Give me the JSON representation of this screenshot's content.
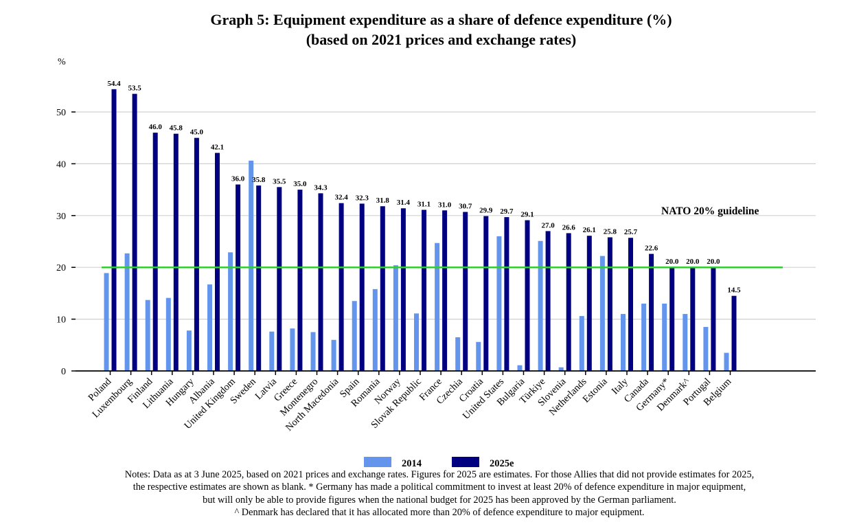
{
  "chart_data": {
    "type": "bar",
    "title": "Graph 5: Equipment expenditure as a share of defence expenditure (%)",
    "subtitle": "(based on 2021 prices and exchange rates)",
    "ylabel": "%",
    "xlabel": "",
    "ylim": [
      0,
      55
    ],
    "yticks": [
      0,
      10,
      20,
      30,
      40,
      50
    ],
    "grid": true,
    "legend_position": "bottom-center",
    "categories": [
      "Poland",
      "Luxembourg",
      "Finland",
      "Lithuania",
      "Hungary",
      "Albania",
      "United Kingdom",
      "Sweden",
      "Latvia",
      "Greece",
      "Montenegro",
      "North Macedonia",
      "Spain",
      "Romania",
      "Norway",
      "Slovak Republic",
      "France",
      "Czechia",
      "Croatia",
      "United States",
      "Bulgaria",
      "Türkiye",
      "Slovenia",
      "Netherlands",
      "Estonia",
      "Italy",
      "Canada",
      "Germany*",
      "Denmark^",
      "Portugal",
      "Belgium"
    ],
    "series": [
      {
        "name": "2014",
        "color": "#6495ED",
        "values": [
          18.9,
          22.7,
          13.7,
          14.1,
          7.8,
          16.7,
          22.9,
          40.6,
          7.6,
          8.2,
          7.5,
          6.0,
          13.5,
          15.8,
          20.4,
          11.1,
          24.7,
          6.5,
          5.6,
          26.0,
          1.1,
          25.1,
          0.7,
          10.6,
          22.2,
          11.0,
          13.0,
          13.0,
          11.0,
          8.5,
          3.5
        ]
      },
      {
        "name": "2025e",
        "color": "#000080",
        "values": [
          54.4,
          53.5,
          46.0,
          45.8,
          45.0,
          42.1,
          36.0,
          35.8,
          35.5,
          35.0,
          34.3,
          32.4,
          32.3,
          31.8,
          31.4,
          31.1,
          31.0,
          30.7,
          29.9,
          29.7,
          29.1,
          27.0,
          26.6,
          26.1,
          25.8,
          25.7,
          22.6,
          20.0,
          20.0,
          20.0,
          14.5
        ],
        "labels": [
          "54.4",
          "53.5",
          "46.0",
          "45.8",
          "45.0",
          "42.1",
          "36.0",
          "35.8",
          "35.5",
          "35.0",
          "34.3",
          "32.4",
          "32.3",
          "31.8",
          "31.4",
          "31.1",
          "31.0",
          "30.7",
          "29.9",
          "29.7",
          "29.1",
          "27.0",
          "26.6",
          "26.1",
          "25.8",
          "25.7",
          "22.6",
          "20.0",
          "20.0",
          "20.0",
          "14.5"
        ]
      }
    ],
    "reference_line": {
      "value": 20,
      "label": "NATO 20% guideline",
      "color": "#33CC33"
    }
  },
  "notes": [
    "Notes: Data as at 3 June 2025, based on 2021 prices and exchange rates. Figures for 2025 are estimates. For those Allies that did not provide estimates for 2025,",
    "the respective estimates are shown as blank. * Germany has made a political commitment to invest at least 20% of defence expenditure in major equipment,",
    "but will only be able to provide figures when the national budget for 2025 has been approved by the German parliament.",
    "^ Denmark has declared that it has allocated more than 20% of defence expenditure to major equipment."
  ]
}
